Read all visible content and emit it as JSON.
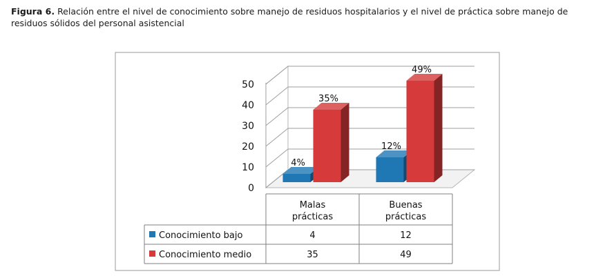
{
  "caption": {
    "figure_label": "Figura 6.",
    "text": "Relación entre el nivel de conocimiento sobre manejo de residuos hospitalarios y el nivel de práctica sobre manejo de residuos sólidos del personal asistencial"
  },
  "chart_data": {
    "type": "bar",
    "categories": [
      "Malas prácticas",
      "Buenas prácticas"
    ],
    "category_lines": [
      [
        "Malas",
        "prácticas"
      ],
      [
        "Buenas",
        "prácticas"
      ]
    ],
    "series": [
      {
        "name": "Conocimiento bajo",
        "values": [
          4,
          12
        ],
        "labels": [
          "4%",
          "12%"
        ],
        "color": "#1f77b4"
      },
      {
        "name": "Conocimiento medio",
        "values": [
          35,
          49
        ],
        "labels": [
          "35%",
          "49%"
        ],
        "color": "#d63a3a"
      }
    ],
    "ylim": [
      0,
      50
    ],
    "yticks": [
      0,
      10,
      20,
      30,
      40,
      50
    ],
    "grid": true,
    "legend": "data-table"
  }
}
